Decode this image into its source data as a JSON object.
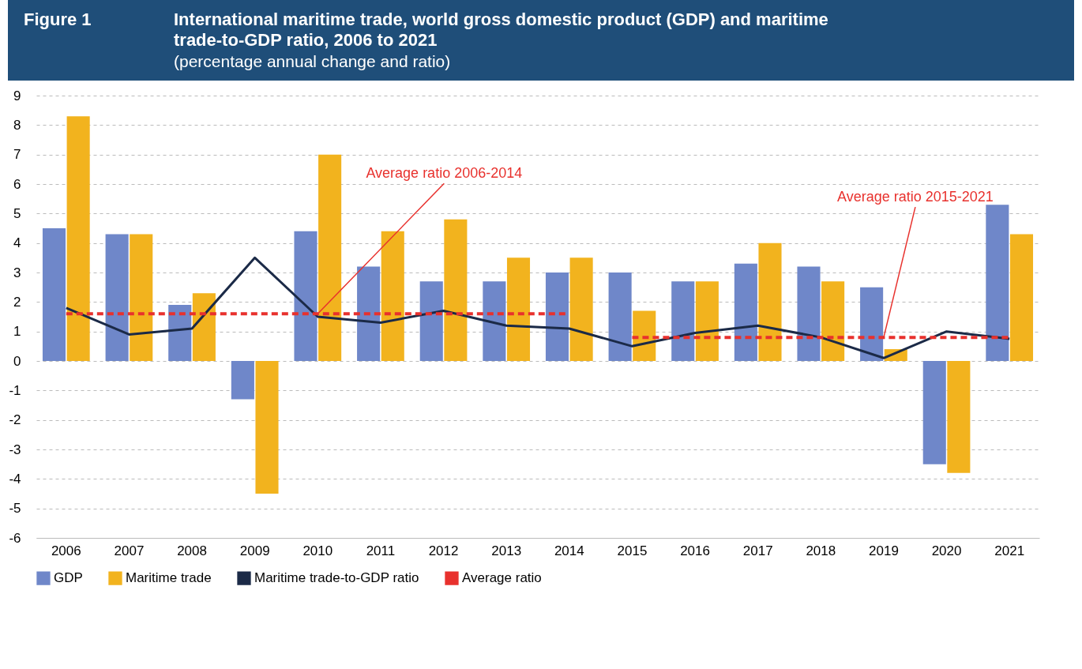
{
  "chart_data": {
    "type": "bar",
    "title": "International maritime trade, world gross domestic product (GDP) and maritime trade-to-GDP ratio, 2006 to 2021",
    "subtitle": "(percentage annual change and ratio)",
    "categories": [
      "2006",
      "2007",
      "2008",
      "2009",
      "2010",
      "2011",
      "2012",
      "2013",
      "2014",
      "2015",
      "2016",
      "2017",
      "2018",
      "2019",
      "2020",
      "2021"
    ],
    "series": [
      {
        "name": "GDP",
        "color": "#6f87c9",
        "values": [
          4.5,
          4.3,
          1.9,
          -1.3,
          4.4,
          3.2,
          2.7,
          2.7,
          3.0,
          3.0,
          2.7,
          3.3,
          3.2,
          2.5,
          -3.5,
          5.3
        ]
      },
      {
        "name": "Maritime trade",
        "color": "#f2b31e",
        "values": [
          8.3,
          4.3,
          2.3,
          -4.5,
          7.0,
          4.4,
          4.8,
          3.5,
          3.5,
          1.7,
          2.7,
          4.0,
          2.7,
          0.4,
          -3.8,
          4.3
        ]
      },
      {
        "name": "Maritime trade-to-GDP ratio",
        "type": "line",
        "color": "#1b2a47",
        "line_style": "solid",
        "values": [
          1.8,
          0.9,
          1.1,
          3.5,
          1.5,
          1.3,
          1.7,
          1.2,
          1.1,
          0.5,
          0.95,
          1.2,
          0.8,
          0.1,
          1.0,
          0.75
        ]
      },
      {
        "name": "Average ratio",
        "type": "line",
        "color": "#e8312d",
        "line_style": "dashed",
        "values": [
          1.6,
          1.6,
          1.6,
          1.6,
          1.6,
          1.6,
          1.6,
          1.6,
          1.6,
          null,
          null,
          null,
          null,
          null,
          null,
          null
        ]
      },
      {
        "type": "line",
        "color": "#e8312d",
        "line_style": "dashed",
        "values": [
          null,
          null,
          null,
          null,
          null,
          null,
          null,
          null,
          null,
          0.8,
          0.8,
          0.8,
          0.8,
          0.8,
          0.8,
          0.8
        ]
      }
    ],
    "ylim": [
      -6,
      9
    ],
    "yticks": [
      -6,
      -5,
      -4,
      -3,
      -2,
      -1,
      0,
      1,
      2,
      3,
      4,
      5,
      6,
      7,
      8,
      9
    ],
    "grid": "y",
    "legend": "bottom",
    "annotations": [
      "Figure 1",
      {
        "text": "Average ratio 2006-2014",
        "x": "2010",
        "y": 1.6
      },
      {
        "text": "Average ratio 2015-2021",
        "x": "2019",
        "y": 0.8
      }
    ]
  }
}
